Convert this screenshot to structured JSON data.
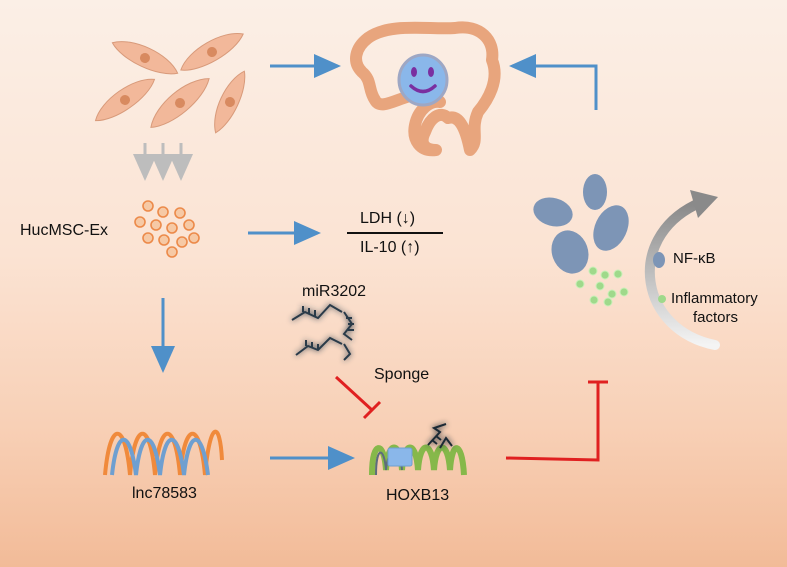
{
  "labels": {
    "hucmsc_ex": "HucMSC-Ex",
    "ldh": "LDH (↓)",
    "il10": "IL-10 (↑)",
    "mir": "miR3202",
    "sponge": "Sponge",
    "lnc": "lnc78583",
    "hoxb13": "HOXB13"
  },
  "legend": {
    "nfkb": "NF-κB",
    "inflammatory_line1": "Inflammatory",
    "inflammatory_line2": "factors"
  },
  "colors": {
    "cell_fill": "#f2b89a",
    "cell_stroke": "#d89a7a",
    "damaged_cell": "#e8a57d",
    "face_fill": "#8ab7ea",
    "face_features": "#7a2fa0",
    "arrow_blue": "#4f90c9",
    "inhibit_red": "#e02020",
    "nfkb_fill": "#7d95b6",
    "factor_dot": "#9fd98b",
    "rna_orange": "#f08a3c",
    "rna_blue": "#6f9fd0",
    "hox_green": "#86b84a"
  }
}
